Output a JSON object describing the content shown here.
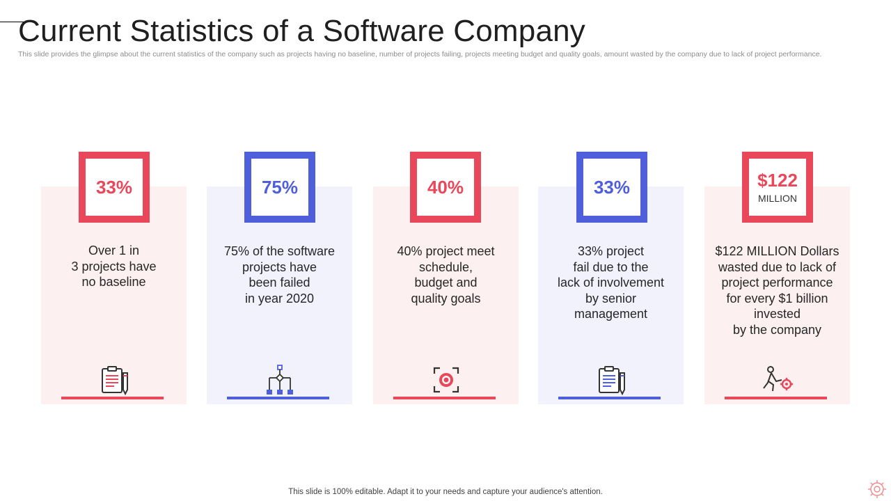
{
  "slide": {
    "title": "Current Statistics of a Software Company",
    "subtitle": "This slide provides the glimpse about the current statistics of the company such as projects having no baseline, number of projects failing, projects meeting budget and quality goals, amount wasted by the company due to lack of project performance.",
    "footer": "This slide is 100% editable. Adapt it to your needs and capture your audience's attention."
  },
  "colors": {
    "red": "#e8485a",
    "blue": "#4f5fdc",
    "pink_bg": "#fdf0f0",
    "blue_bg": "#f1f2fc"
  },
  "cards": [
    {
      "value": "33%",
      "unit": "",
      "description": "Over 1 in\n3 projects have\nno baseline",
      "icon": "clipboard-pencil-icon",
      "theme": "red"
    },
    {
      "value": "75%",
      "unit": "",
      "description": "75% of the software\nprojects have\nbeen failed\nin year 2020",
      "icon": "hierarchy-flowchart-icon",
      "theme": "blue"
    },
    {
      "value": "40%",
      "unit": "",
      "description": "40% project meet\nschedule,\nbudget and\nquality goals",
      "icon": "target-focus-icon",
      "theme": "red"
    },
    {
      "value": "33%",
      "unit": "",
      "description": "33% project\nfail due to the\nlack of involvement\nby senior\nmanagement",
      "icon": "clipboard-pencil-icon",
      "theme": "blue"
    },
    {
      "value": "$122",
      "unit": "MILLION",
      "description": "$122 MILLION Dollars\nwasted due to lack of\nproject performance\nfor every $1 billion\ninvested\nby the company",
      "icon": "person-pushing-gear-icon",
      "theme": "red"
    }
  ],
  "corner_icon": "gear-logo-icon"
}
